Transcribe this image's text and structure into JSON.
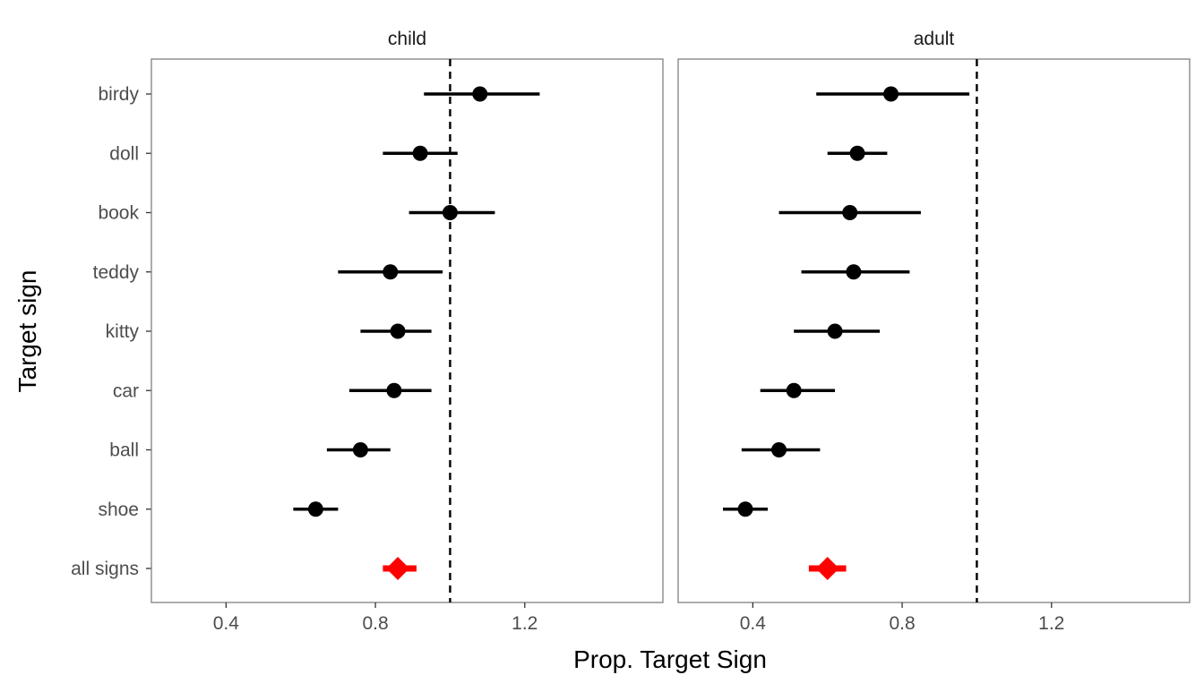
{
  "chart_data": {
    "type": "scatter",
    "subtype": "dot-and-whisker",
    "xlabel": "Prop. Target Sign",
    "ylabel": "Target sign",
    "xlim": [
      0.2,
      1.57
    ],
    "x_ticks": [
      0.4,
      0.8,
      1.2
    ],
    "x_tick_labels": [
      "0.4",
      "0.8",
      "1.2"
    ],
    "reference_line_x": 1.0,
    "grid": false,
    "legend": "none",
    "categories": [
      "birdy",
      "doll",
      "book",
      "teddy",
      "kitty",
      "car",
      "ball",
      "shoe",
      "all signs"
    ],
    "colors": {
      "item_point": "#000000",
      "summary_point": "#ff0000",
      "reference_line": "#000000",
      "panel_border": "#7f7f7f"
    },
    "panels": [
      {
        "name": "child",
        "points": [
          {
            "category": "birdy",
            "value": 1.08,
            "low": 0.93,
            "high": 1.24,
            "summary": false
          },
          {
            "category": "doll",
            "value": 0.92,
            "low": 0.82,
            "high": 1.02,
            "summary": false
          },
          {
            "category": "book",
            "value": 1.0,
            "low": 0.89,
            "high": 1.12,
            "summary": false
          },
          {
            "category": "teddy",
            "value": 0.84,
            "low": 0.7,
            "high": 0.98,
            "summary": false
          },
          {
            "category": "kitty",
            "value": 0.86,
            "low": 0.76,
            "high": 0.95,
            "summary": false
          },
          {
            "category": "car",
            "value": 0.85,
            "low": 0.73,
            "high": 0.95,
            "summary": false
          },
          {
            "category": "ball",
            "value": 0.76,
            "low": 0.67,
            "high": 0.84,
            "summary": false
          },
          {
            "category": "shoe",
            "value": 0.64,
            "low": 0.58,
            "high": 0.7,
            "summary": false
          },
          {
            "category": "all signs",
            "value": 0.86,
            "low": 0.82,
            "high": 0.91,
            "summary": true
          }
        ]
      },
      {
        "name": "adult",
        "points": [
          {
            "category": "birdy",
            "value": 0.77,
            "low": 0.57,
            "high": 0.98,
            "summary": false
          },
          {
            "category": "doll",
            "value": 0.68,
            "low": 0.6,
            "high": 0.76,
            "summary": false
          },
          {
            "category": "book",
            "value": 0.66,
            "low": 0.47,
            "high": 0.85,
            "summary": false
          },
          {
            "category": "teddy",
            "value": 0.67,
            "low": 0.53,
            "high": 0.82,
            "summary": false
          },
          {
            "category": "kitty",
            "value": 0.62,
            "low": 0.51,
            "high": 0.74,
            "summary": false
          },
          {
            "category": "car",
            "value": 0.51,
            "low": 0.42,
            "high": 0.62,
            "summary": false
          },
          {
            "category": "ball",
            "value": 0.47,
            "low": 0.37,
            "high": 0.58,
            "summary": false
          },
          {
            "category": "shoe",
            "value": 0.38,
            "low": 0.32,
            "high": 0.44,
            "summary": false
          },
          {
            "category": "all signs",
            "value": 0.6,
            "low": 0.55,
            "high": 0.65,
            "summary": true
          }
        ]
      }
    ]
  }
}
